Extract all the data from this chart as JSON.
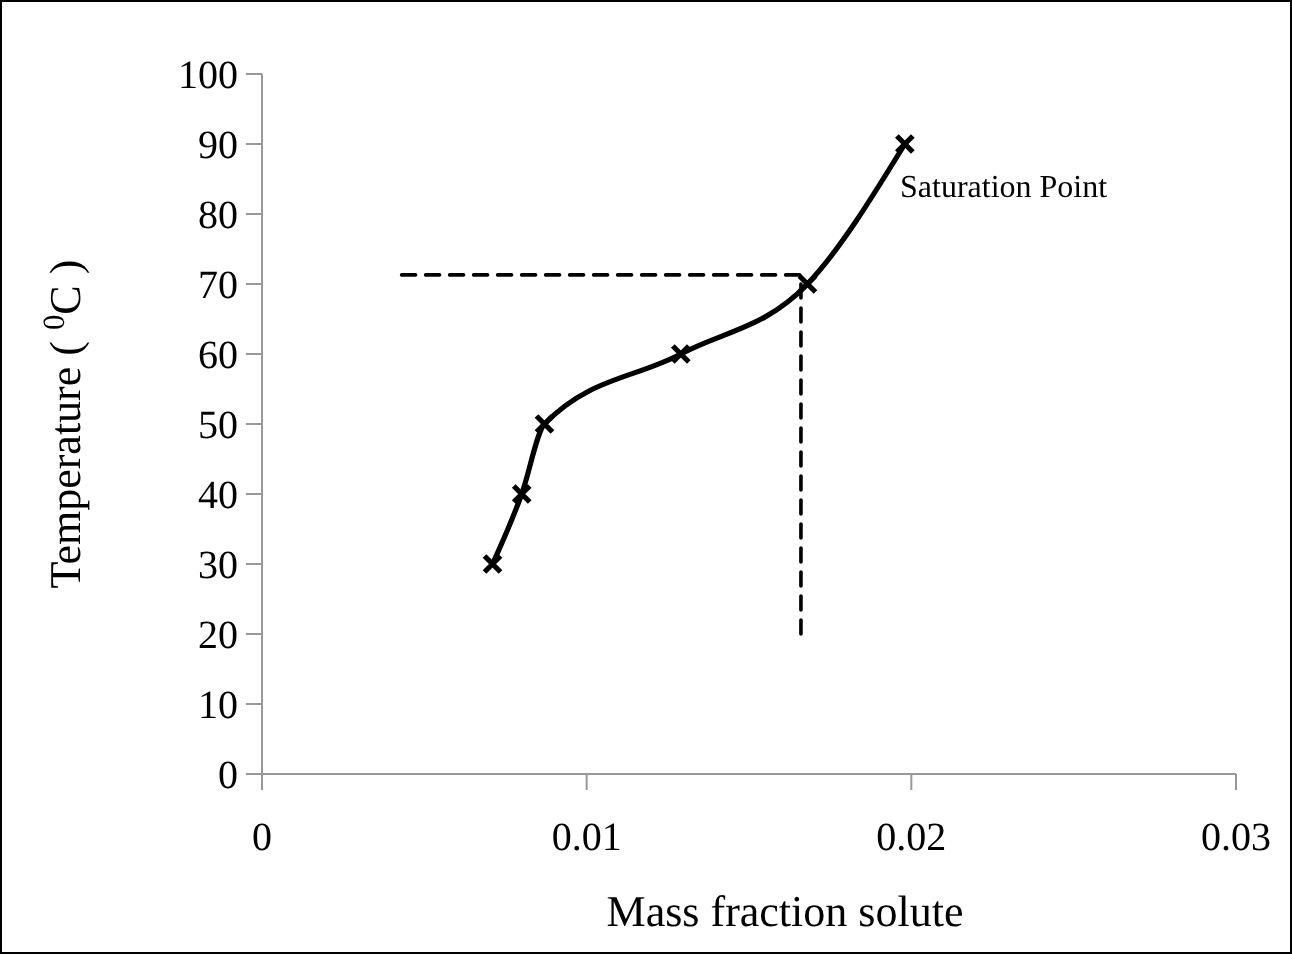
{
  "chart_data": {
    "type": "line",
    "xlabel": "Mass fraction solute",
    "ylabel": "Temperature ( $^{0}$C )",
    "xlim": [
      0,
      0.03
    ],
    "xticks": [
      0,
      0.01,
      0.02,
      0.03
    ],
    "ylim": [
      0,
      100
    ],
    "yticks": [
      0,
      10,
      20,
      30,
      40,
      50,
      60,
      70,
      80,
      90,
      100
    ],
    "grid": false,
    "series": [
      {
        "color": "#000000",
        "x": [
          0.0071,
          0.008,
          0.0087,
          0.0129,
          0.0168,
          0.0198
        ],
        "values": [
          30,
          40,
          50,
          60,
          70,
          90
        ],
        "marker": "cross",
        "line_style": "solid"
      },
      {
        "color": "#000000",
        "x": [
          0.0043,
          0.0167
        ],
        "values": [
          71.3,
          71.3
        ],
        "marker": "none",
        "line_style": "dashed"
      },
      {
        "color": "#000000",
        "x": [
          0.0166,
          0.0166
        ],
        "values": [
          20,
          70
        ],
        "marker": "none",
        "line_style": "dashed"
      }
    ],
    "annotations": [
      "Saturation Point"
    ]
  }
}
